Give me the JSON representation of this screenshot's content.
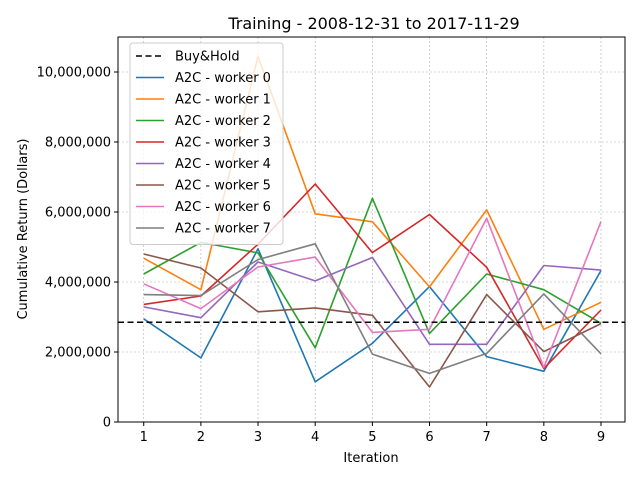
{
  "chart_data": {
    "type": "line",
    "title": "Training - 2008-12-31 to 2017-11-29",
    "xlabel": "Iteration",
    "ylabel": "Cumulative Return (Dollars)",
    "xlim": [
      0.55,
      9.42
    ],
    "ylim": [
      0,
      11000000
    ],
    "x": [
      1,
      2,
      3,
      4,
      5,
      6,
      7,
      8,
      9
    ],
    "xticks": [
      "1",
      "2",
      "3",
      "4",
      "5",
      "6",
      "7",
      "8",
      "9"
    ],
    "yticks": [
      0,
      2000000,
      4000000,
      6000000,
      8000000,
      10000000
    ],
    "ytick_labels": [
      "0",
      "2,000,000",
      "4,000,000",
      "6,000,000",
      "8,000,000",
      "10,000,000"
    ],
    "grid": true,
    "legend_position": "top-left",
    "reference_line": {
      "name": "Buy&Hold",
      "value": 2850000,
      "color": "#000000",
      "style": "dashed"
    },
    "series": [
      {
        "name": "A2C - worker 0",
        "color": "#1f77b4",
        "values": [
          2950000,
          1830000,
          4950000,
          1150000,
          2250000,
          3870000,
          1870000,
          1450000,
          4330000
        ]
      },
      {
        "name": "A2C - worker 1",
        "color": "#ff7f0e",
        "values": [
          4680000,
          3780000,
          10450000,
          5950000,
          5720000,
          3860000,
          6060000,
          2650000,
          3420000
        ]
      },
      {
        "name": "A2C - worker 2",
        "color": "#2ca02c",
        "values": [
          4230000,
          5130000,
          4830000,
          2120000,
          6390000,
          2530000,
          4230000,
          3780000,
          2820000
        ]
      },
      {
        "name": "A2C - worker 3",
        "color": "#d62728",
        "values": [
          3360000,
          3600000,
          5080000,
          6800000,
          4840000,
          5930000,
          4420000,
          1530000,
          3200000
        ]
      },
      {
        "name": "A2C - worker 4",
        "color": "#9467bd",
        "values": [
          3290000,
          2980000,
          4570000,
          4030000,
          4700000,
          2220000,
          2220000,
          4470000,
          4340000
        ]
      },
      {
        "name": "A2C - worker 5",
        "color": "#8c564b",
        "values": [
          4800000,
          4400000,
          3150000,
          3260000,
          3050000,
          1000000,
          3640000,
          2010000,
          2810000
        ]
      },
      {
        "name": "A2C - worker 6",
        "color": "#e377c2",
        "values": [
          3950000,
          3240000,
          4430000,
          4710000,
          2560000,
          2650000,
          5820000,
          1560000,
          5730000
        ]
      },
      {
        "name": "A2C - worker 7",
        "color": "#7f7f7f",
        "values": [
          3640000,
          3610000,
          4640000,
          5090000,
          1940000,
          1390000,
          1960000,
          3660000,
          1950000
        ]
      }
    ]
  }
}
